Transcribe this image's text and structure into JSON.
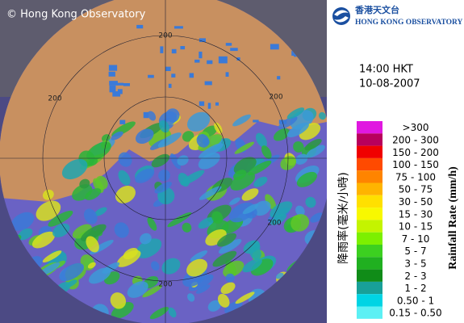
{
  "copyright": "© Hong Kong Observatory",
  "logo": {
    "chinese": "香港天文台",
    "english": "HONG KONG OBSERVATORY"
  },
  "time": "14:00 HKT",
  "date": "10-08-2007",
  "range_labels": [
    "200",
    "200",
    "200",
    "200",
    "200"
  ],
  "legend": {
    "title_chinese": "降雨率(毫米/小時)",
    "title_english": "Rainfall Rate (mm/h)",
    "entries": [
      {
        "label": ">300",
        "color": "#e018e0"
      },
      {
        "label": "200 - 300",
        "color": "#b8005c"
      },
      {
        "label": "150 - 200",
        "color": "#f00000"
      },
      {
        "label": "100 - 150",
        "color": "#ff4a00"
      },
      {
        "label": "75 - 100",
        "color": "#ff8400"
      },
      {
        "label": "50 - 75",
        "color": "#ffb400"
      },
      {
        "label": "30 - 50",
        "color": "#ffe000"
      },
      {
        "label": "15 - 30",
        "color": "#f8f800"
      },
      {
        "label": "10 - 15",
        "color": "#c4f400"
      },
      {
        "label": "7 - 10",
        "color": "#7cf000"
      },
      {
        "label": "5 - 7",
        "color": "#3cd020"
      },
      {
        "label": "3 - 5",
        "color": "#20b020"
      },
      {
        "label": "2 - 3",
        "color": "#108c18"
      },
      {
        "label": "1 - 2",
        "color": "#18a098"
      },
      {
        "label": "0.50 - 1",
        "color": "#00d4e4"
      },
      {
        "label": "0.15 - 0.50",
        "color": "#5cf0f4"
      }
    ]
  }
}
